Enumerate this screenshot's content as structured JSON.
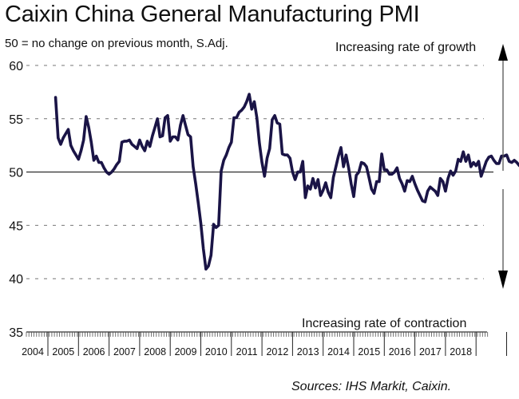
{
  "chart_data": {
    "type": "line",
    "title": "Caixin China General Manufacturing PMI",
    "subtitle": "50 = no change on previous month, S.Adj.",
    "annotation_top": "Increasing rate of growth",
    "annotation_bottom": "Increasing rate of contraction",
    "source": "Sources: IHS Markit, Caixin.",
    "xlabel": "",
    "ylabel": "",
    "ylim": [
      35,
      60
    ],
    "yticks": [
      35,
      40,
      45,
      50,
      55,
      60
    ],
    "reference_line": 50,
    "grid": "horizontal dashed",
    "x_start": "2004-04",
    "x_frequency": "monthly",
    "xtick_labels": [
      "2004",
      "2005",
      "2006",
      "2007",
      "2008",
      "2009",
      "2010",
      "2011",
      "2012",
      "2013",
      "2014",
      "2015",
      "2016",
      "2017",
      "2018"
    ],
    "line_color": "#1a1446",
    "series": [
      {
        "name": "Caixin China General Manufacturing PMI",
        "values": [
          57.0,
          53.2,
          52.6,
          53.2,
          53.6,
          54.0,
          52.5,
          52.0,
          51.6,
          51.2,
          52.0,
          53.0,
          55.2,
          54.2,
          52.8,
          51.1,
          51.5,
          50.9,
          50.9,
          50.4,
          50.0,
          49.8,
          50.0,
          50.3,
          50.7,
          51.0,
          52.8,
          52.9,
          52.9,
          53.0,
          52.6,
          52.4,
          52.2,
          53.0,
          52.4,
          52.0,
          52.9,
          52.4,
          53.4,
          54.2,
          55.0,
          53.3,
          53.4,
          55.1,
          55.3,
          52.9,
          53.3,
          53.3,
          53.0,
          54.4,
          55.3,
          54.4,
          53.5,
          53.3,
          50.5,
          48.9,
          47.1,
          45.2,
          42.8,
          40.9,
          41.2,
          42.2,
          45.1,
          44.8,
          45.0,
          50.1,
          51.1,
          51.6,
          52.3,
          52.8,
          55.1,
          55.1,
          55.6,
          55.8,
          56.1,
          56.6,
          57.3,
          55.9,
          56.6,
          55.1,
          52.7,
          50.9,
          49.6,
          51.3,
          52.2,
          54.9,
          55.3,
          54.6,
          54.5,
          51.7,
          51.6,
          51.6,
          51.3,
          50.0,
          49.3,
          50.0,
          50.0,
          51.0,
          47.6,
          48.7,
          48.4,
          49.4,
          48.5,
          49.3,
          47.8,
          48.3,
          49.0,
          48.1,
          47.6,
          49.5,
          50.5,
          51.5,
          52.3,
          50.5,
          51.6,
          50.4,
          48.9,
          47.7,
          49.7,
          50.0,
          50.9,
          50.8,
          50.5,
          49.5,
          48.4,
          48.0,
          49.1,
          49.1,
          51.7,
          50.2,
          50.2,
          49.8,
          49.8,
          50.0,
          50.4,
          49.4,
          48.9,
          48.2,
          49.2,
          49.1,
          49.6,
          48.9,
          48.3,
          47.8,
          47.3,
          47.2,
          48.2,
          48.6,
          48.4,
          48.2,
          47.8,
          49.4,
          49.1,
          48.2,
          49.4,
          50.1,
          49.7,
          50.1,
          51.2,
          51.0,
          51.9,
          51.0,
          51.6,
          50.5,
          50.9,
          50.6,
          51.0,
          49.6,
          50.3,
          51.0,
          51.4,
          51.5,
          51.1,
          50.8,
          50.8,
          51.5,
          51.5,
          51.6,
          51.0,
          50.9,
          51.1,
          50.9,
          50.6,
          50.5,
          50.0,
          50.0,
          50.0,
          49.6,
          48.3,
          50.8
        ]
      }
    ]
  }
}
